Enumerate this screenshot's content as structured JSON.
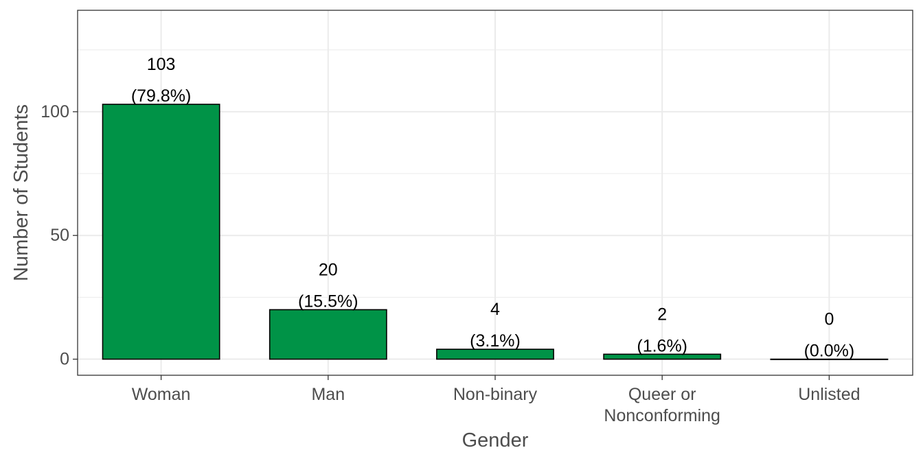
{
  "chart_data": {
    "type": "bar",
    "categories": [
      [
        "Woman"
      ],
      [
        "Man"
      ],
      [
        "Non-binary"
      ],
      [
        "Queer or",
        "Nonconforming"
      ],
      [
        "Unlisted"
      ]
    ],
    "values": [
      103,
      20,
      4,
      2,
      0
    ],
    "labels": [
      [
        "103",
        "(79.8%)"
      ],
      [
        "20",
        "(15.5%)"
      ],
      [
        "4",
        "(3.1%)"
      ],
      [
        "2",
        "(1.6%)"
      ],
      [
        "0",
        "(0.0%)"
      ]
    ],
    "xlabel": "Gender",
    "ylabel": "Number of Students",
    "ylim": [
      -6.5,
      141
    ],
    "yticks": [
      0,
      50,
      100
    ],
    "grid": true,
    "colors": {
      "bar": "#009347",
      "grid": "#ebebeb",
      "panel_border": "#333333"
    }
  }
}
